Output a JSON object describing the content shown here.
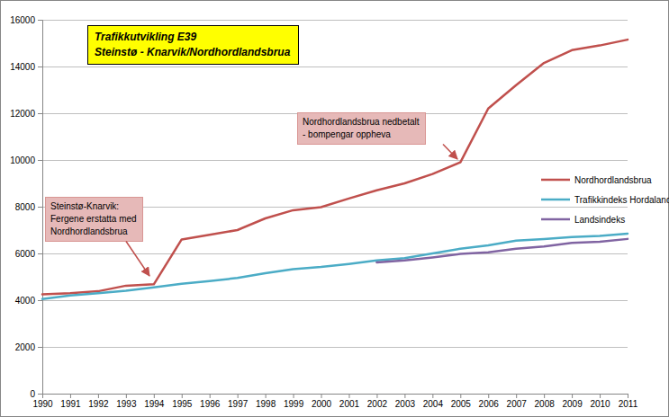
{
  "chart_data": {
    "type": "line",
    "title": [
      "Trafikkutvikling E39",
      "Steinstø - Knarvik/Nordhordlandsbrua"
    ],
    "annotations": [
      {
        "text": [
          "Steinstø-Knarvik:",
          "Fergene erstatta med",
          "Nordhordlandsbrua"
        ]
      },
      {
        "text": [
          "Nordhordlandsbrua nedbetalt",
          "- bompengar oppheva"
        ]
      }
    ],
    "categories": [
      "1990",
      "1991",
      "1992",
      "1993",
      "1994",
      "1995",
      "1996",
      "1997",
      "1998",
      "1999",
      "2000",
      "2001",
      "2002",
      "2003",
      "2004",
      "2005",
      "2006",
      "2007",
      "2008",
      "2009",
      "2010",
      "2011"
    ],
    "series": [
      {
        "name": "Nordhordlandsbrua",
        "color": "#c0504d",
        "values": [
          4250,
          4300,
          4380,
          4620,
          4680,
          6600,
          6800,
          7000,
          7500,
          7850,
          7980,
          8350,
          8700,
          9000,
          9400,
          9900,
          12200,
          13200,
          14150,
          14700,
          14900,
          15150
        ]
      },
      {
        "name": "Trafikkindeks Hordaland",
        "color": "#4bacc6",
        "values": [
          4050,
          4200,
          4300,
          4400,
          4550,
          4700,
          4820,
          4950,
          5150,
          5330,
          5420,
          5550,
          5700,
          5800,
          6000,
          6200,
          6350,
          6550,
          6620,
          6700,
          6750,
          6850
        ]
      },
      {
        "name": "Landsindeks",
        "color": "#8064a2",
        "values": [
          null,
          null,
          null,
          null,
          null,
          null,
          null,
          null,
          null,
          null,
          null,
          null,
          5620,
          5700,
          5830,
          5980,
          6050,
          6200,
          6300,
          6450,
          6500,
          6620
        ]
      }
    ],
    "ylim": [
      0,
      16000
    ],
    "yticks": [
      0,
      2000,
      4000,
      6000,
      8000,
      10000,
      12000,
      14000,
      16000
    ],
    "grid": true,
    "legend": "right"
  }
}
